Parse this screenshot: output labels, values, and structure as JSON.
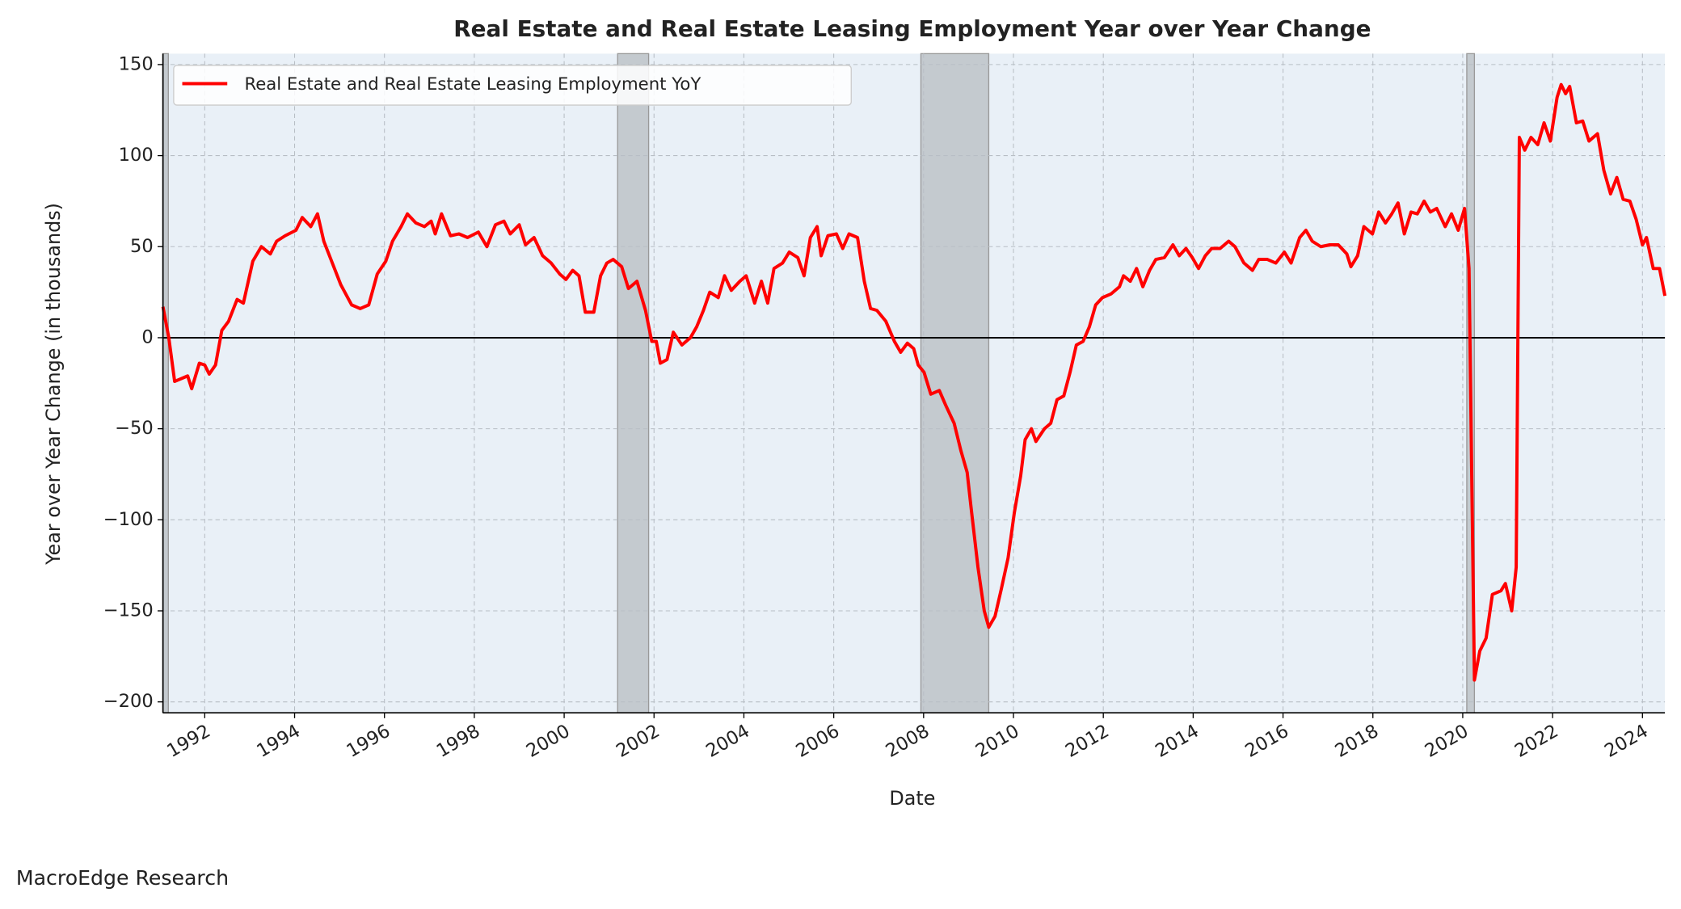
{
  "chart_data": {
    "type": "line",
    "title": "Real Estate and Real Estate Leasing Employment Year over Year Change",
    "x_label": "Date",
    "y_label": "Year over Year Change (in thousands)",
    "watermark": "MacroEdge Research",
    "legend": "upper left",
    "grid": true,
    "background": "#e9f0f7",
    "hline": 0,
    "shade_color": "#b0b5ba",
    "shaded_spans": [
      [
        1991.07,
        1991.19
      ],
      [
        2001.19,
        2001.88
      ],
      [
        2007.94,
        2009.45
      ],
      [
        2020.09,
        2020.26
      ]
    ],
    "xlim": [
      1991.07,
      2024.5
    ],
    "xticks": [
      1992,
      1994,
      1996,
      1998,
      2000,
      2002,
      2004,
      2006,
      2008,
      2010,
      2012,
      2014,
      2016,
      2018,
      2020,
      2022,
      2024
    ],
    "ylim": [
      -206,
      156
    ],
    "yticks": [
      {
        "value": -200,
        "label": "−200"
      },
      {
        "value": -150,
        "label": "−150"
      },
      {
        "value": -100,
        "label": "−100"
      },
      {
        "value": -50,
        "label": "−50"
      },
      0,
      50,
      100,
      150
    ],
    "x": [
      1991.07,
      1991.2,
      1991.33,
      1991.62,
      1991.71,
      1991.88,
      1992,
      1992.1,
      1992.24,
      1992.38,
      1992.53,
      1992.72,
      1992.86,
      1993.07,
      1993.26,
      1993.46,
      1993.6,
      1993.79,
      1994.03,
      1994.17,
      1994.36,
      1994.51,
      1994.65,
      1994.84,
      1995.03,
      1995.27,
      1995.46,
      1995.65,
      1995.84,
      1996.03,
      1996.18,
      1996.37,
      1996.51,
      1996.7,
      1996.89,
      1997.04,
      1997.13,
      1997.27,
      1997.47,
      1997.66,
      1997.85,
      1998.09,
      1998.28,
      1998.47,
      1998.66,
      1998.8,
      1999,
      1999.14,
      1999.33,
      1999.52,
      1999.71,
      1999.9,
      2000.04,
      2000.19,
      2000.33,
      2000.47,
      2000.66,
      2000.81,
      2000.95,
      2001.09,
      2001.28,
      2001.43,
      2001.62,
      2001.81,
      2001.95,
      2002.05,
      2002.14,
      2002.29,
      2002.43,
      2002.62,
      2002.81,
      2002.95,
      2003.1,
      2003.24,
      2003.43,
      2003.57,
      2003.72,
      2003.91,
      2004.05,
      2004.24,
      2004.39,
      2004.53,
      2004.67,
      2004.86,
      2005.01,
      2005.2,
      2005.34,
      2005.48,
      2005.63,
      2005.72,
      2005.87,
      2006.06,
      2006.2,
      2006.34,
      2006.53,
      2006.68,
      2006.82,
      2006.96,
      2007.16,
      2007.35,
      2007.49,
      2007.64,
      2007.78,
      2007.88,
      2008.01,
      2008.16,
      2008.35,
      2008.49,
      2008.68,
      2008.83,
      2008.97,
      2009.06,
      2009.21,
      2009.35,
      2009.45,
      2009.59,
      2009.73,
      2009.88,
      2010.02,
      2010.16,
      2010.26,
      2010.4,
      2010.5,
      2010.69,
      2010.83,
      2010.97,
      2011.12,
      2011.26,
      2011.4,
      2011.55,
      2011.69,
      2011.83,
      2011.98,
      2012.17,
      2012.36,
      2012.45,
      2012.6,
      2012.74,
      2012.88,
      2013.03,
      2013.17,
      2013.36,
      2013.55,
      2013.69,
      2013.84,
      2013.98,
      2014.12,
      2014.27,
      2014.41,
      2014.6,
      2014.79,
      2014.93,
      2015.13,
      2015.32,
      2015.46,
      2015.65,
      2015.84,
      2016.03,
      2016.18,
      2016.37,
      2016.51,
      2016.65,
      2016.84,
      2017.04,
      2017.23,
      2017.42,
      2017.51,
      2017.66,
      2017.8,
      2017.99,
      2018.13,
      2018.28,
      2018.42,
      2018.56,
      2018.7,
      2018.85,
      2018.99,
      2019.14,
      2019.28,
      2019.42,
      2019.61,
      2019.75,
      2019.9,
      2020.04,
      2020.14,
      2020.26,
      2020.38,
      2020.52,
      2020.66,
      2020.85,
      2020.95,
      2021.09,
      2021.19,
      2021.26,
      2021.38,
      2021.52,
      2021.67,
      2021.81,
      2021.95,
      2022.1,
      2022.19,
      2022.29,
      2022.38,
      2022.53,
      2022.67,
      2022.81,
      2023,
      2023.14,
      2023.29,
      2023.43,
      2023.57,
      2023.72,
      2023.86,
      2024,
      2024.09,
      2024.24,
      2024.38,
      2024.5
    ],
    "series": [
      {
        "name": "Real Estate and Real Estate Leasing Employment YoY",
        "color": "#ff0000",
        "values": [
          17,
          0,
          -24,
          -21,
          -28,
          -14,
          -15,
          -20,
          -15,
          4,
          9,
          21,
          19,
          42,
          50,
          46,
          53,
          56,
          59,
          66,
          61,
          68,
          53,
          41,
          29,
          18,
          16,
          18,
          35,
          42,
          53,
          61,
          68,
          63,
          61,
          64,
          57,
          68,
          56,
          57,
          55,
          58,
          50,
          62,
          64,
          57,
          62,
          51,
          55,
          45,
          41,
          35,
          32,
          37,
          34,
          14,
          14,
          34,
          41,
          43,
          39,
          27,
          31,
          15,
          -2,
          -2,
          -14,
          -12,
          3,
          -4,
          0,
          6,
          15,
          25,
          22,
          34,
          26,
          31,
          34,
          19,
          31,
          19,
          38,
          41,
          47,
          44,
          34,
          55,
          61,
          45,
          56,
          57,
          49,
          57,
          55,
          31,
          16,
          15,
          9,
          -2,
          -8,
          -3,
          -6,
          -15,
          -19,
          -31,
          -29,
          -37,
          -47,
          -62,
          -74,
          -94,
          -126,
          -150,
          -159,
          -153,
          -138,
          -121,
          -96,
          -76,
          -56,
          -50,
          -57,
          -50,
          -47,
          -34,
          -32,
          -19,
          -4,
          -2,
          6,
          18,
          22,
          24,
          28,
          34,
          31,
          38,
          28,
          37,
          43,
          44,
          51,
          45,
          49,
          44,
          38,
          45,
          49,
          49,
          53,
          50,
          41,
          37,
          43,
          43,
          41,
          47,
          41,
          55,
          59,
          53,
          50,
          51,
          51,
          46,
          39,
          45,
          61,
          57,
          69,
          63,
          68,
          74,
          57,
          69,
          68,
          75,
          69,
          71,
          61,
          68,
          59,
          71,
          38,
          -188,
          -172,
          -165,
          -141,
          -139,
          -135,
          -150,
          -126,
          110,
          103,
          110,
          106,
          118,
          108,
          132,
          139,
          134,
          138,
          118,
          119,
          108,
          112,
          92,
          79,
          88,
          76,
          75,
          65,
          51,
          55,
          38,
          38,
          23
        ]
      }
    ]
  }
}
